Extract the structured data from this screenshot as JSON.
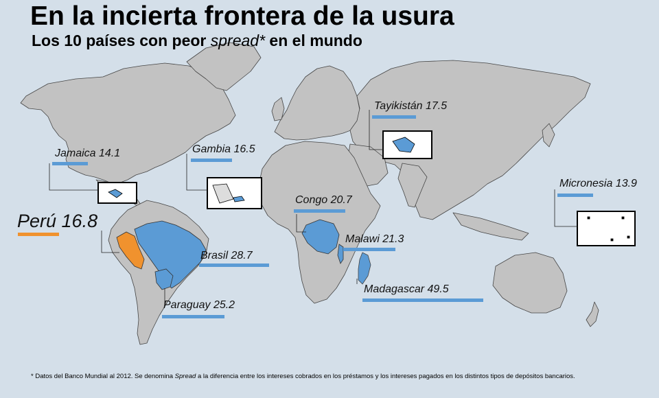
{
  "title": "En la incierta frontera de la usura",
  "subtitle": {
    "prefix": "Los 10 países con peor ",
    "emphasis": "spread*",
    "suffix": " en el mundo"
  },
  "colors": {
    "ocean": "#d4dfe9",
    "land": "#c2c2c2",
    "highlight": "#5b9bd5",
    "peru": "#f0922e"
  },
  "countries": [
    {
      "id": "peru",
      "label": "Perú 16.8",
      "value": 16.8,
      "highlight_color": "orange"
    },
    {
      "id": "jamaica",
      "label": "Jamaica 14.1",
      "value": 14.1
    },
    {
      "id": "gambia",
      "label": "Gambia 16.5",
      "value": 16.5
    },
    {
      "id": "tayikistan",
      "label": "Tayikistán 17.5",
      "value": 17.5
    },
    {
      "id": "micronesia",
      "label": "Micronesia 13.9",
      "value": 13.9
    },
    {
      "id": "congo",
      "label": "Congo 20.7",
      "value": 20.7
    },
    {
      "id": "brasil",
      "label": "Brasil 28.7",
      "value": 28.7
    },
    {
      "id": "malawi",
      "label": "Malawi 21.3",
      "value": 21.3
    },
    {
      "id": "madagascar",
      "label": "Madagascar 49.5",
      "value": 49.5
    },
    {
      "id": "paraguay",
      "label": "Paraguay 25.2",
      "value": 25.2
    }
  ],
  "footnote": {
    "prefix": "* Datos del Banco Mundial al 2012. Se denomina ",
    "emphasis": "Spread",
    "suffix": " a la diferencia entre los intereses cobrados en los préstamos y los intereses pagados en los distintos tipos de depósitos bancarios."
  }
}
